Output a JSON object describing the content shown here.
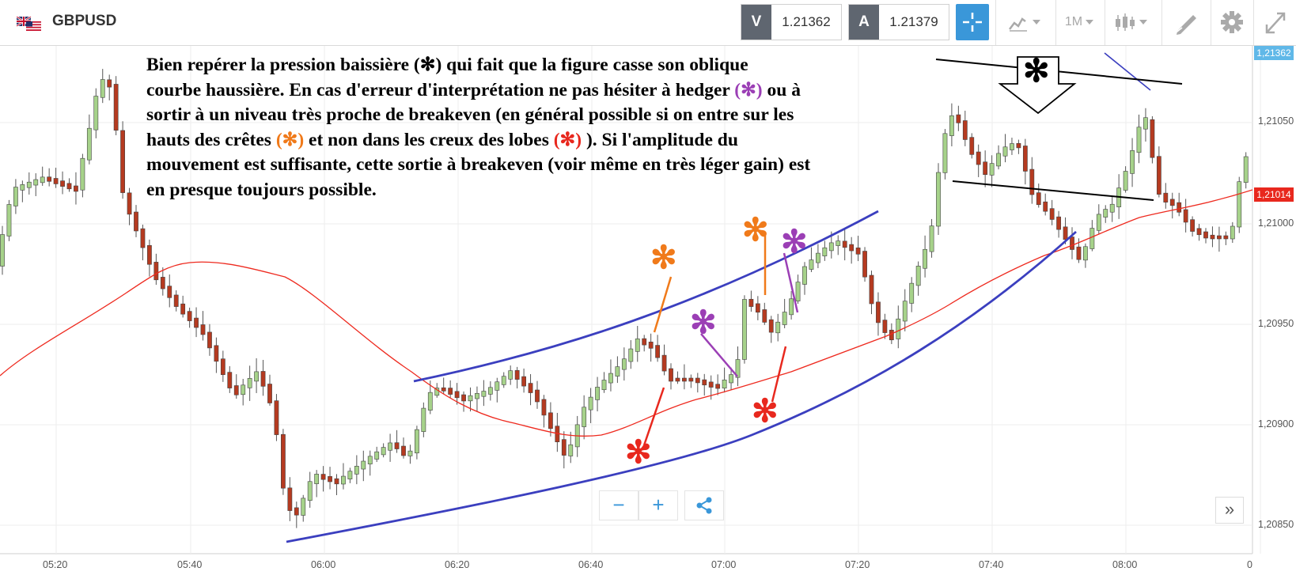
{
  "header": {
    "symbol": "GBPUSD",
    "flag_icon": "uk-us-flag-icon",
    "sell_label": "V",
    "sell_price": "1.21362",
    "buy_label": "A",
    "buy_price": "1.21379",
    "timeframe": "1M",
    "accent_color": "#3a97d9"
  },
  "annotation": {
    "line1_a": "Bien repérer la pression baissière (",
    "line1_b": ") qui fait que la figure casse son oblique",
    "line2_a": "courbe haussière. En cas d'erreur d'interprétation ne pas hésiter à hedger ",
    "line2_star": "(✻)",
    "line2_b": " ou à",
    "line3": "sortir à un niveau très proche de breakeven (en général possible si on entre sur les",
    "line4_a": "hauts des crêtes ",
    "line4_star1": "(✻)",
    "line4_b": "  et non dans les creux des lobes ",
    "line4_star2": "(✻)",
    "line4_c": " ). Si l'amplitude du",
    "line5": "mouvement est suffisante, cette sortie à breakeven (voir même en très léger gain) est",
    "line6": "en presque toujours possible.",
    "star": "✻",
    "colors": {
      "black": "#000000",
      "purple": "#9b3fb5",
      "orange": "#f07a1a",
      "red": "#e8281e"
    }
  },
  "price_axis": {
    "labels": [
      "1,21050",
      "1,21000",
      "1,20950",
      "1,20900",
      "1,20850"
    ],
    "top_badge": "1,21362",
    "current_badge": "1,21014"
  },
  "time_axis": {
    "labels": [
      "05:20",
      "05:40",
      "06:00",
      "06:20",
      "06:40",
      "07:00",
      "07:20",
      "07:40",
      "08:00",
      "0"
    ]
  },
  "controls": {
    "zoom_out": "−",
    "zoom_in": "+",
    "share_icon": "share-icon",
    "expand": "»"
  }
}
